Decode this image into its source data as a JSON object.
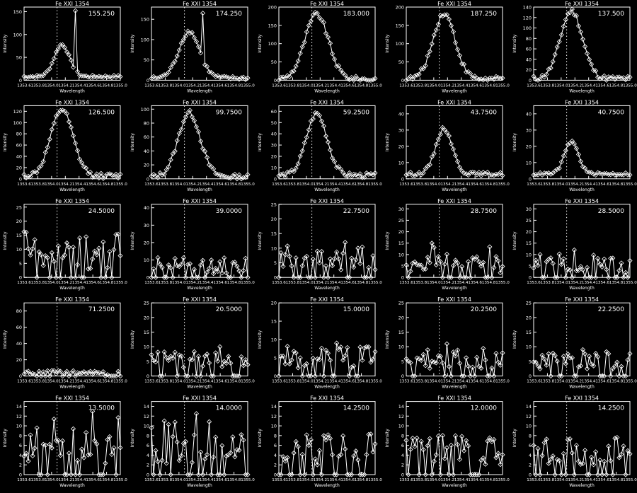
{
  "chart_data": [
    {
      "type": "line",
      "title": "Fe XXI 1354",
      "annotation": "155.250",
      "xlabel": "Wavelength",
      "ylabel": "Intensity",
      "xlim": [
        1353.6,
        1355.0
      ],
      "ylim": [
        0,
        160
      ],
      "yticks": [
        0,
        50,
        100,
        150
      ],
      "xtick_labels": [
        "1353.6",
        "1353.8",
        "1354.0",
        "1354.2",
        "1354.4",
        "1354.6",
        "1354.8",
        "1355.0"
      ],
      "marker_line": 1354.08,
      "kind": "peak",
      "peak": 70,
      "width": 0.11,
      "base": 8,
      "spike": 152
    },
    {
      "type": "line",
      "title": "Fe XXI 1354",
      "annotation": "174.250",
      "xlabel": "Wavelength",
      "ylabel": "Intensity",
      "xlim": [
        1353.6,
        1355.0
      ],
      "ylim": [
        0,
        180
      ],
      "yticks": [
        0,
        50,
        100,
        150
      ],
      "xtick_labels": [
        "1353.6",
        "1353.8",
        "1354.0",
        "1354.2",
        "1354.4",
        "1354.6",
        "1354.8",
        "1355.0"
      ],
      "marker_line": 1354.08,
      "kind": "peak",
      "peak": 115,
      "width": 0.15,
      "base": 5,
      "spike": 165
    },
    {
      "type": "line",
      "title": "Fe XXI 1354",
      "annotation": "183.000",
      "xlabel": "Wavelength",
      "ylabel": "Intensity",
      "xlim": [
        1353.6,
        1355.0
      ],
      "ylim": [
        0,
        200
      ],
      "yticks": [
        0,
        50,
        100,
        150,
        200
      ],
      "xtick_labels": [
        "1353.6",
        "1353.8",
        "1354.0",
        "1354.2",
        "1354.4",
        "1354.6",
        "1354.8",
        "1355.0"
      ],
      "marker_line": 1354.08,
      "kind": "peak",
      "peak": 178,
      "width": 0.17,
      "base": 3,
      "spike": 0
    },
    {
      "type": "line",
      "title": "Fe XXI 1354",
      "annotation": "187.250",
      "xlabel": "Wavelength",
      "ylabel": "Intensity",
      "xlim": [
        1353.6,
        1355.0
      ],
      "ylim": [
        0,
        200
      ],
      "yticks": [
        0,
        50,
        100,
        150,
        200
      ],
      "xtick_labels": [
        "1353.6",
        "1353.8",
        "1354.0",
        "1354.2",
        "1354.4",
        "1354.6",
        "1354.8",
        "1355.0"
      ],
      "marker_line": 1354.08,
      "kind": "peak",
      "peak": 180,
      "width": 0.16,
      "base": 3,
      "spike": 0
    },
    {
      "type": "line",
      "title": "Fe XXI 1354",
      "annotation": "137.500",
      "xlabel": "Wavelength",
      "ylabel": "Intensity",
      "xlim": [
        1353.6,
        1355.0
      ],
      "ylim": [
        0,
        140
      ],
      "yticks": [
        0,
        20,
        40,
        60,
        80,
        100,
        120,
        140
      ],
      "xtick_labels": [
        "1353.6",
        "1353.8",
        "1354.0",
        "1354.2",
        "1354.4",
        "1354.6",
        "1354.8",
        "1355.0"
      ],
      "marker_line": 1354.08,
      "kind": "peak",
      "peak": 130,
      "width": 0.16,
      "base": 3,
      "spike": 0
    },
    {
      "type": "line",
      "title": "Fe XXI 1354",
      "annotation": "126.500",
      "xlabel": "Wavelength",
      "ylabel": "Intensity",
      "xlim": [
        1353.6,
        1355.0
      ],
      "ylim": [
        0,
        130
      ],
      "yticks": [
        0,
        20,
        40,
        60,
        80,
        100,
        120
      ],
      "xtick_labels": [
        "1353.6",
        "1353.8",
        "1354.0",
        "1354.2",
        "1354.4",
        "1354.6",
        "1354.8",
        "1355.0"
      ],
      "marker_line": 1354.08,
      "kind": "peak",
      "peak": 118,
      "width": 0.16,
      "base": 5,
      "spike": 0
    },
    {
      "type": "line",
      "title": "Fe XXI 1354",
      "annotation": "99.7500",
      "xlabel": "Wavelength",
      "ylabel": "Intensity",
      "xlim": [
        1353.6,
        1355.0
      ],
      "ylim": [
        0,
        105
      ],
      "yticks": [
        0,
        20,
        40,
        60,
        80,
        100
      ],
      "xtick_labels": [
        "1353.6",
        "1353.8",
        "1354.0",
        "1354.2",
        "1354.4",
        "1354.6",
        "1354.8",
        "1355.0"
      ],
      "marker_line": 1354.08,
      "kind": "peak",
      "peak": 92,
      "width": 0.16,
      "base": 3,
      "spike": 0
    },
    {
      "type": "line",
      "title": "Fe XXI 1354",
      "annotation": "59.2500",
      "xlabel": "Wavelength",
      "ylabel": "Intensity",
      "xlim": [
        1353.6,
        1355.0
      ],
      "ylim": [
        0,
        65
      ],
      "yticks": [
        0,
        10,
        20,
        30,
        40,
        50,
        60
      ],
      "xtick_labels": [
        "1353.6",
        "1353.8",
        "1354.0",
        "1354.2",
        "1354.4",
        "1354.6",
        "1354.8",
        "1355.0"
      ],
      "marker_line": 1354.08,
      "kind": "peak",
      "peak": 55,
      "width": 0.15,
      "base": 3,
      "spike": 0
    },
    {
      "type": "line",
      "title": "Fe XXI 1354",
      "annotation": "43.7500",
      "xlabel": "Wavelength",
      "ylabel": "Intensity",
      "xlim": [
        1353.6,
        1355.0
      ],
      "ylim": [
        0,
        45
      ],
      "yticks": [
        0,
        10,
        20,
        30,
        40
      ],
      "xtick_labels": [
        "1353.6",
        "1353.8",
        "1354.0",
        "1354.2",
        "1354.4",
        "1354.6",
        "1354.8",
        "1355.0"
      ],
      "marker_line": 1354.08,
      "kind": "peak",
      "peak": 28,
      "width": 0.12,
      "base": 3,
      "spike": 0
    },
    {
      "type": "line",
      "title": "Fe XXI 1354",
      "annotation": "40.7500",
      "xlabel": "Wavelength",
      "ylabel": "Intensity",
      "xlim": [
        1353.6,
        1355.0
      ],
      "ylim": [
        0,
        45
      ],
      "yticks": [
        0,
        10,
        20,
        30,
        40
      ],
      "xtick_labels": [
        "1353.6",
        "1353.8",
        "1354.0",
        "1354.2",
        "1354.4",
        "1354.6",
        "1354.8",
        "1355.0"
      ],
      "marker_line": 1354.08,
      "kind": "peak",
      "peak": 20,
      "width": 0.1,
      "base": 3,
      "spike": 0
    },
    {
      "type": "line",
      "title": "Fe XXI 1354",
      "annotation": "24.5000",
      "xlabel": "Wavelength",
      "ylabel": "Intensity",
      "xlim": [
        1353.6,
        1355.0
      ],
      "ylim": [
        0,
        26
      ],
      "yticks": [
        0,
        5,
        10,
        15,
        20,
        25
      ],
      "xtick_labels": [
        "1353.6",
        "1353.8",
        "1354.0",
        "1354.2",
        "1354.4",
        "1354.6",
        "1354.8",
        "1355.0"
      ],
      "marker_line": 1354.08,
      "kind": "noise",
      "peak": 6,
      "width": 0.2,
      "base": 3,
      "spike": 14
    },
    {
      "type": "line",
      "title": "Fe XXI 1354",
      "annotation": "39.0000",
      "xlabel": "Wavelength",
      "ylabel": "Intensity",
      "xlim": [
        1353.6,
        1355.0
      ],
      "ylim": [
        0,
        42
      ],
      "yticks": [
        0,
        10,
        20,
        30,
        40
      ],
      "xtick_labels": [
        "1353.6",
        "1353.8",
        "1354.0",
        "1354.2",
        "1354.4",
        "1354.6",
        "1354.8",
        "1355.0"
      ],
      "marker_line": 1354.08,
      "kind": "noise",
      "peak": 4,
      "width": 0.2,
      "base": 2,
      "spike": 9
    },
    {
      "type": "line",
      "title": "Fe XXI 1354",
      "annotation": "22.7500",
      "xlabel": "Wavelength",
      "ylabel": "Intensity",
      "xlim": [
        1353.6,
        1355.0
      ],
      "ylim": [
        0,
        25
      ],
      "yticks": [
        0,
        5,
        10,
        15,
        20,
        25
      ],
      "xtick_labels": [
        "1353.6",
        "1353.8",
        "1354.0",
        "1354.2",
        "1354.4",
        "1354.6",
        "1354.8",
        "1355.0"
      ],
      "marker_line": 1354.08,
      "kind": "noise",
      "peak": 3,
      "width": 0.2,
      "base": 2,
      "spike": 12
    },
    {
      "type": "line",
      "title": "Fe XXI 1354",
      "annotation": "28.7500",
      "xlabel": "Wavelength",
      "ylabel": "Intensity",
      "xlim": [
        1353.6,
        1355.0
      ],
      "ylim": [
        0,
        32
      ],
      "yticks": [
        0,
        5,
        10,
        15,
        20,
        25,
        30
      ],
      "xtick_labels": [
        "1353.6",
        "1353.8",
        "1354.0",
        "1354.2",
        "1354.4",
        "1354.6",
        "1354.8",
        "1355.0"
      ],
      "marker_line": 1354.08,
      "kind": "noise",
      "peak": 3,
      "width": 0.2,
      "base": 2,
      "spike": 15
    },
    {
      "type": "line",
      "title": "Fe XXI 1354",
      "annotation": "28.5000",
      "xlabel": "Wavelength",
      "ylabel": "Intensity",
      "xlim": [
        1353.6,
        1355.0
      ],
      "ylim": [
        0,
        32
      ],
      "yticks": [
        0,
        5,
        10,
        15,
        20,
        25,
        30
      ],
      "xtick_labels": [
        "1353.6",
        "1353.8",
        "1354.0",
        "1354.2",
        "1354.4",
        "1354.6",
        "1354.8",
        "1355.0"
      ],
      "marker_line": 1354.08,
      "kind": "noise",
      "peak": 3,
      "width": 0.2,
      "base": 2,
      "spike": 12
    },
    {
      "type": "line",
      "title": "Fe XXI 1354",
      "annotation": "71.2500",
      "xlabel": "Wavelength",
      "ylabel": "Intensity",
      "xlim": [
        1353.6,
        1355.0
      ],
      "ylim": [
        0,
        90
      ],
      "yticks": [
        0,
        20,
        40,
        60,
        80
      ],
      "xtick_labels": [
        "1353.6",
        "1353.8",
        "1354.0",
        "1354.2",
        "1354.4",
        "1354.6",
        "1354.8",
        "1355.0"
      ],
      "marker_line": 1354.08,
      "kind": "noise",
      "peak": 1,
      "width": 0.2,
      "base": 2,
      "spike": 4
    },
    {
      "type": "line",
      "title": "Fe XXI 1354",
      "annotation": "20.5000",
      "xlabel": "Wavelength",
      "ylabel": "Intensity",
      "xlim": [
        1353.6,
        1355.0
      ],
      "ylim": [
        0,
        25
      ],
      "yticks": [
        0,
        5,
        10,
        15,
        20,
        25
      ],
      "xtick_labels": [
        "1353.6",
        "1353.8",
        "1354.0",
        "1354.2",
        "1354.4",
        "1354.6",
        "1354.8",
        "1355.0"
      ],
      "marker_line": 1354.08,
      "kind": "noise",
      "peak": 2,
      "width": 0.2,
      "base": 2,
      "spike": 10
    },
    {
      "type": "line",
      "title": "Fe XXI 1354",
      "annotation": "15.0000",
      "xlabel": "Wavelength",
      "ylabel": "Intensity",
      "xlim": [
        1353.6,
        1355.0
      ],
      "ylim": [
        0,
        20
      ],
      "yticks": [
        0,
        5,
        10,
        15,
        20
      ],
      "xtick_labels": [
        "1353.6",
        "1353.8",
        "1354.0",
        "1354.2",
        "1354.4",
        "1354.6",
        "1354.8",
        "1355.0"
      ],
      "marker_line": 1354.08,
      "kind": "noise",
      "peak": 2,
      "width": 0.2,
      "base": 2,
      "spike": 9
    },
    {
      "type": "line",
      "title": "Fe XXI 1354",
      "annotation": "20.2500",
      "xlabel": "Wavelength",
      "ylabel": "Intensity",
      "xlim": [
        1353.6,
        1355.0
      ],
      "ylim": [
        0,
        25
      ],
      "yticks": [
        0,
        5,
        10,
        15,
        20,
        25
      ],
      "xtick_labels": [
        "1353.6",
        "1353.8",
        "1354.0",
        "1354.2",
        "1354.4",
        "1354.6",
        "1354.8",
        "1355.0"
      ],
      "marker_line": 1354.08,
      "kind": "noise",
      "peak": 2,
      "width": 0.2,
      "base": 2,
      "spike": 11
    },
    {
      "type": "line",
      "title": "Fe XXI 1354",
      "annotation": "22.2500",
      "xlabel": "Wavelength",
      "ylabel": "Intensity",
      "xlim": [
        1353.6,
        1355.0
      ],
      "ylim": [
        0,
        25
      ],
      "yticks": [
        0,
        5,
        10,
        15,
        20,
        25
      ],
      "xtick_labels": [
        "1353.6",
        "1353.8",
        "1354.0",
        "1354.2",
        "1354.4",
        "1354.6",
        "1354.8",
        "1355.0"
      ],
      "marker_line": 1354.08,
      "kind": "noise",
      "peak": 2,
      "width": 0.2,
      "base": 2,
      "spike": 9
    },
    {
      "type": "line",
      "title": "Fe XXI 1354",
      "annotation": "13.5000",
      "xlabel": "Wavelength",
      "ylabel": "Intensity",
      "xlim": [
        1353.6,
        1355.0
      ],
      "ylim": [
        0,
        15
      ],
      "yticks": [
        0,
        2,
        4,
        6,
        8,
        10,
        12,
        14
      ],
      "xtick_labels": [
        "1353.6",
        "1353.8",
        "1354.0",
        "1354.2",
        "1354.4",
        "1354.6",
        "1354.8",
        "1355.0"
      ],
      "marker_line": 1354.08,
      "kind": "noise",
      "peak": 2,
      "width": 0.2,
      "base": 2,
      "spike": 13
    },
    {
      "type": "line",
      "title": "Fe XXI 1354",
      "annotation": "14.0000",
      "xlabel": "Wavelength",
      "ylabel": "Intensity",
      "xlim": [
        1353.6,
        1355.0
      ],
      "ylim": [
        0,
        15
      ],
      "yticks": [
        0,
        2,
        4,
        6,
        8,
        10,
        12,
        14
      ],
      "xtick_labels": [
        "1353.6",
        "1353.8",
        "1354.0",
        "1354.2",
        "1354.4",
        "1354.6",
        "1354.8",
        "1355.0"
      ],
      "marker_line": 1354.08,
      "kind": "noise",
      "peak": 2,
      "width": 0.2,
      "base": 2,
      "spike": 12.5
    },
    {
      "type": "line",
      "title": "Fe XXI 1354",
      "annotation": "14.2500",
      "xlabel": "Wavelength",
      "ylabel": "Intensity",
      "xlim": [
        1353.6,
        1355.0
      ],
      "ylim": [
        0,
        15
      ],
      "yticks": [
        0,
        2,
        4,
        6,
        8,
        10,
        12,
        14
      ],
      "xtick_labels": [
        "1353.6",
        "1353.8",
        "1354.0",
        "1354.2",
        "1354.4",
        "1354.6",
        "1354.8",
        "1355.0"
      ],
      "marker_line": 1354.08,
      "kind": "noise",
      "peak": 2,
      "width": 0.2,
      "base": 2,
      "spike": 6
    },
    {
      "type": "line",
      "title": "Fe XXI 1354",
      "annotation": "12.0000",
      "xlabel": "Wavelength",
      "ylabel": "Intensity",
      "xlim": [
        1353.6,
        1355.0
      ],
      "ylim": [
        0,
        15
      ],
      "yticks": [
        0,
        2,
        4,
        6,
        8,
        10,
        12,
        14
      ],
      "xtick_labels": [
        "1353.6",
        "1353.8",
        "1354.0",
        "1354.2",
        "1354.4",
        "1354.6",
        "1354.8",
        "1355.0"
      ],
      "marker_line": 1354.08,
      "kind": "noise",
      "peak": 2,
      "width": 0.2,
      "base": 2,
      "spike": 7
    },
    {
      "type": "line",
      "title": "Fe XXI 1354",
      "annotation": "14.2500",
      "xlabel": "Wavelength",
      "ylabel": "Intensity",
      "xlim": [
        1353.6,
        1355.0
      ],
      "ylim": [
        0,
        15
      ],
      "yticks": [
        0,
        2,
        4,
        6,
        8,
        10,
        12,
        14
      ],
      "xtick_labels": [
        "1353.6",
        "1353.8",
        "1354.0",
        "1354.2",
        "1354.4",
        "1354.6",
        "1354.8",
        "1355.0"
      ],
      "marker_line": 1354.08,
      "kind": "noise",
      "peak": 2,
      "width": 0.2,
      "base": 2,
      "spike": 6
    }
  ]
}
